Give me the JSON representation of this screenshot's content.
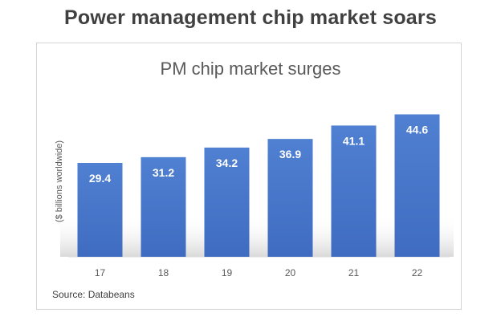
{
  "page": {
    "title": "Power management chip market soars",
    "source": "Source: Databeans"
  },
  "chart_data": {
    "type": "bar",
    "title": "PM chip market surges",
    "ylabel": "($ billions worldwide)",
    "xlabel": "",
    "categories": [
      "17",
      "18",
      "19",
      "20",
      "21",
      "22"
    ],
    "values": [
      29.4,
      31.2,
      34.2,
      36.9,
      41.1,
      44.6
    ],
    "ylim": [
      0,
      50
    ],
    "grid": false,
    "legend": "none",
    "data_labels": true,
    "colors": {
      "bar": "#4472c4",
      "bar_light": "#4f7fd1",
      "label": "#ffffff",
      "text": "#595959"
    }
  }
}
